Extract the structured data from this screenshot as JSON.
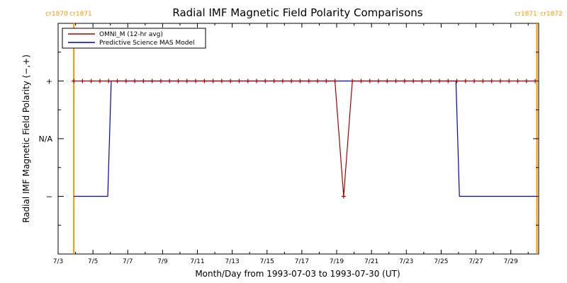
{
  "chart_data": {
    "type": "line",
    "title": "Radial IMF Magnetic Field Polarity Comparisons",
    "xlabel": "Month/Day from 1993-07-03 to 1993-07-30 (UT)",
    "ylabel": "Radial IMF Magnetic Field Polarity (−,+)",
    "x_tick_labels": [
      "7/3",
      "7/5",
      "7/7",
      "7/9",
      "7/11",
      "7/13",
      "7/15",
      "7/17",
      "7/19",
      "7/21",
      "7/23",
      "7/25",
      "7/27",
      "7/29"
    ],
    "x_tick_days": [
      0,
      2,
      4,
      6,
      8,
      10,
      12,
      14,
      16,
      18,
      20,
      22,
      24,
      26
    ],
    "xlim_days": [
      0,
      27.6
    ],
    "y_tick_labels": [
      "+",
      "N/A",
      "−"
    ],
    "y_tick_values": [
      1,
      0,
      -1
    ],
    "ylim": [
      -2,
      2
    ],
    "legend": {
      "position": "top-left",
      "entries": [
        "OMNI_M (12-hr avg)",
        "Predictive Science MAS Model"
      ]
    },
    "carrington_markers": [
      {
        "day": 0.9,
        "left_label": "cr1870",
        "right_label": "cr1871"
      },
      {
        "day": 27.5,
        "left_label": "cr1871",
        "right_label": "cr1872"
      }
    ],
    "series": [
      {
        "name": "OMNI_M (12-hr avg)",
        "color": "#aa0000",
        "marker": "plus",
        "x_days": [
          0.9,
          1.4,
          1.9,
          2.4,
          2.9,
          3.4,
          3.9,
          4.4,
          4.9,
          5.4,
          5.9,
          6.4,
          6.9,
          7.4,
          7.9,
          8.4,
          8.9,
          9.4,
          9.9,
          10.4,
          10.9,
          11.4,
          11.9,
          12.4,
          12.9,
          13.4,
          13.9,
          14.4,
          14.9,
          15.4,
          15.9,
          16.4,
          16.9,
          17.4,
          17.9,
          18.4,
          18.9,
          19.4,
          19.9,
          20.4,
          20.9,
          21.4,
          21.9,
          22.4,
          22.9,
          23.4,
          23.9,
          24.4,
          24.9,
          25.4,
          25.9,
          26.4,
          26.9,
          27.4
        ],
        "values": [
          1,
          1,
          1,
          1,
          1,
          1,
          1,
          1,
          1,
          1,
          1,
          1,
          1,
          1,
          1,
          1,
          1,
          1,
          1,
          1,
          1,
          1,
          1,
          1,
          1,
          1,
          1,
          1,
          1,
          1,
          1,
          -1,
          1,
          1,
          1,
          1,
          1,
          1,
          1,
          1,
          1,
          1,
          1,
          1,
          1,
          1,
          1,
          1,
          1,
          1,
          1,
          1,
          1,
          1
        ]
      },
      {
        "name": "Predictive Science MAS Model",
        "color": "#0000cc",
        "marker": "none",
        "x_days": [
          0.9,
          2.85,
          3.05,
          22.85,
          23.05,
          27.5
        ],
        "values": [
          -1,
          -1,
          1,
          1,
          -1,
          -1
        ]
      }
    ]
  }
}
